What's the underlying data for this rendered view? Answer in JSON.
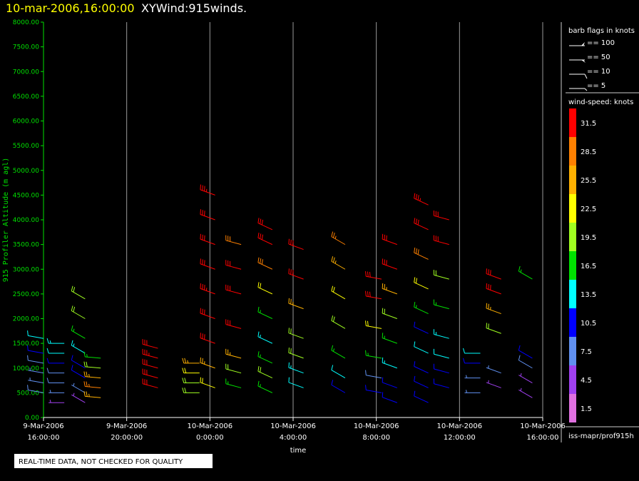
{
  "chart_data": {
    "type": "windbarb",
    "title": "10-mar-2006,16:00:00",
    "subtitle": "XYWind:915winds.",
    "y_label": "915 Profiler Altitude (m agl)",
    "x_label": "time",
    "xlim": [
      "2006-03-09T16:00",
      "2006-03-10T16:00"
    ],
    "xticks": [
      {
        "value": "2006-03-09T16:00",
        "label": [
          "9-Mar-2006",
          "16:00:00"
        ]
      },
      {
        "value": "2006-03-09T20:00",
        "label": [
          "9-Mar-2006",
          "20:00:00"
        ]
      },
      {
        "value": "2006-03-10T00:00",
        "label": [
          "10-Mar-2006",
          "0:00:00"
        ]
      },
      {
        "value": "2006-03-10T04:00",
        "label": [
          "10-Mar-2006",
          "4:00:00"
        ]
      },
      {
        "value": "2006-03-10T08:00",
        "label": [
          "10-Mar-2006",
          "8:00:00"
        ]
      },
      {
        "value": "2006-03-10T12:00",
        "label": [
          "10-Mar-2006",
          "12:00:00"
        ]
      },
      {
        "value": "2006-03-10T16:00",
        "label": [
          "10-Mar-2006",
          "16:00:00"
        ]
      }
    ],
    "ylim": [
      0,
      8000
    ],
    "yticks": [
      {
        "value": 0,
        "label": "0.00"
      },
      {
        "value": 500,
        "label": "500.00"
      },
      {
        "value": 1000,
        "label": "1000.00"
      },
      {
        "value": 1500,
        "label": "1500.00"
      },
      {
        "value": 2000,
        "label": "2000.00"
      },
      {
        "value": 2500,
        "label": "2500.00"
      },
      {
        "value": 3000,
        "label": "3000.00"
      },
      {
        "value": 3500,
        "label": "3500.00"
      },
      {
        "value": 4000,
        "label": "4000.00"
      },
      {
        "value": 4500,
        "label": "4500.00"
      },
      {
        "value": 5000,
        "label": "5000.00"
      },
      {
        "value": 5500,
        "label": "5500.00"
      },
      {
        "value": 6000,
        "label": "6000.00"
      },
      {
        "value": 6500,
        "label": "6500.00"
      },
      {
        "value": 7000,
        "label": "7000.00"
      },
      {
        "value": 7500,
        "label": "7500.00"
      },
      {
        "value": 8000,
        "label": "8000.00"
      }
    ],
    "grid": true,
    "profiles": [
      {
        "time": "2006-03-09T16:00",
        "direction": 280,
        "altitude": [
          500,
          700,
          900,
          1100,
          1300,
          1600
        ],
        "speed": [
          8,
          7,
          6,
          8,
          9,
          12
        ]
      },
      {
        "time": "2006-03-09T17:00",
        "direction": 270,
        "altitude": [
          300,
          500,
          700,
          900,
          1100,
          1300,
          1500
        ],
        "speed": [
          5,
          7,
          8,
          8,
          9,
          12,
          14
        ]
      },
      {
        "time": "2006-03-09T18:00",
        "direction": 300,
        "altitude": [
          300,
          500,
          800,
          1000,
          1300,
          1600,
          2000,
          2400
        ],
        "speed": [
          4,
          6,
          10,
          11,
          14,
          16,
          18,
          19
        ]
      },
      {
        "time": "2006-03-09T18:45",
        "direction": 275,
        "altitude": [
          400,
          600,
          800,
          1000,
          1200
        ],
        "speed": [
          25,
          27,
          24,
          20,
          17
        ]
      },
      {
        "time": "2006-03-09T21:30",
        "direction": 285,
        "altitude": [
          600,
          800,
          1000,
          1200,
          1400
        ],
        "speed": [
          31,
          30,
          32,
          33,
          31
        ]
      },
      {
        "time": "2006-03-09T23:30",
        "direction": 270,
        "altitude": [
          500,
          700,
          900,
          1100
        ],
        "speed": [
          20,
          18,
          22,
          25
        ]
      },
      {
        "time": "2006-03-10T00:15",
        "direction": 290,
        "altitude": [
          600,
          1000,
          1500,
          2000,
          2500,
          3000,
          3500,
          4000,
          4500
        ],
        "speed": [
          22,
          26,
          30,
          32,
          33,
          31,
          30,
          32,
          34
        ]
      },
      {
        "time": "2006-03-10T01:30",
        "direction": 285,
        "altitude": [
          600,
          900,
          1200,
          1800,
          2500,
          3000,
          3500
        ],
        "speed": [
          16,
          20,
          26,
          31,
          32,
          30,
          28
        ]
      },
      {
        "time": "2006-03-10T03:00",
        "direction": 295,
        "altitude": [
          500,
          800,
          1100,
          1500,
          2000,
          2500,
          3000,
          3500,
          3800
        ],
        "speed": [
          17,
          19,
          15,
          14,
          16,
          21,
          28,
          31,
          32
        ]
      },
      {
        "time": "2006-03-10T04:30",
        "direction": 290,
        "altitude": [
          600,
          900,
          1200,
          1600,
          2200,
          2800,
          3400
        ],
        "speed": [
          12,
          14,
          18,
          20,
          26,
          31,
          32
        ]
      },
      {
        "time": "2006-03-10T06:30",
        "direction": 300,
        "altitude": [
          500,
          800,
          1200,
          1800,
          2400,
          3000,
          3500
        ],
        "speed": [
          10,
          12,
          16,
          20,
          22,
          24,
          27
        ]
      },
      {
        "time": "2006-03-10T08:15",
        "direction": 280,
        "altitude": [
          500,
          800,
          1200,
          1800,
          2400,
          2800
        ],
        "speed": [
          10,
          8,
          17,
          21,
          30,
          31
        ]
      },
      {
        "time": "2006-03-10T09:00",
        "direction": 290,
        "altitude": [
          300,
          600,
          1000,
          1500,
          2000,
          2500,
          3000,
          3500
        ],
        "speed": [
          9,
          11,
          13,
          15,
          19,
          26,
          31,
          32
        ]
      },
      {
        "time": "2006-03-10T10:30",
        "direction": 295,
        "altitude": [
          300,
          600,
          900,
          1300,
          1700,
          2100,
          2600,
          3200,
          3800,
          4300
        ],
        "speed": [
          11,
          9,
          10,
          12,
          11,
          16,
          22,
          28,
          31,
          33
        ]
      },
      {
        "time": "2006-03-10T11:30",
        "direction": 285,
        "altitude": [
          600,
          900,
          1200,
          1600,
          2200,
          2800,
          3500,
          4000
        ],
        "speed": [
          9,
          11,
          12,
          14,
          17,
          20,
          30,
          32
        ]
      },
      {
        "time": "2006-03-10T13:00",
        "direction": 270,
        "altitude": [
          500,
          800,
          1100,
          1300
        ],
        "speed": [
          6,
          7,
          9,
          12
        ]
      },
      {
        "time": "2006-03-10T14:00",
        "direction": 290,
        "altitude": [
          600,
          900,
          1700,
          2100,
          2500,
          2800
        ],
        "speed": [
          5,
          7,
          20,
          25,
          31,
          32
        ]
      },
      {
        "time": "2006-03-10T15:30",
        "direction": 300,
        "altitude": [
          400,
          700,
          1000,
          1200,
          2800
        ],
        "speed": [
          4,
          5,
          8,
          10,
          15
        ]
      }
    ],
    "barb_legend": {
      "title": "barb flags in knots",
      "items": [
        "== 100",
        "== 50",
        "== 10",
        "== 5"
      ]
    },
    "colorbar": {
      "title": "wind-speed: knots",
      "levels": [
        31.5,
        28.5,
        25.5,
        22.5,
        19.5,
        16.5,
        13.5,
        10.5,
        7.5,
        4.5,
        1.5
      ],
      "colors": [
        "#ff0000",
        "#ff8000",
        "#ffb000",
        "#ffff00",
        "#a0ff20",
        "#00e000",
        "#00ffff",
        "#0000ff",
        "#6090f0",
        "#a040f0",
        "#e070e0"
      ]
    },
    "source": "iss-mapr/prof915h",
    "notice": "REAL-TIME DATA, NOT CHECKED FOR QUALITY"
  }
}
